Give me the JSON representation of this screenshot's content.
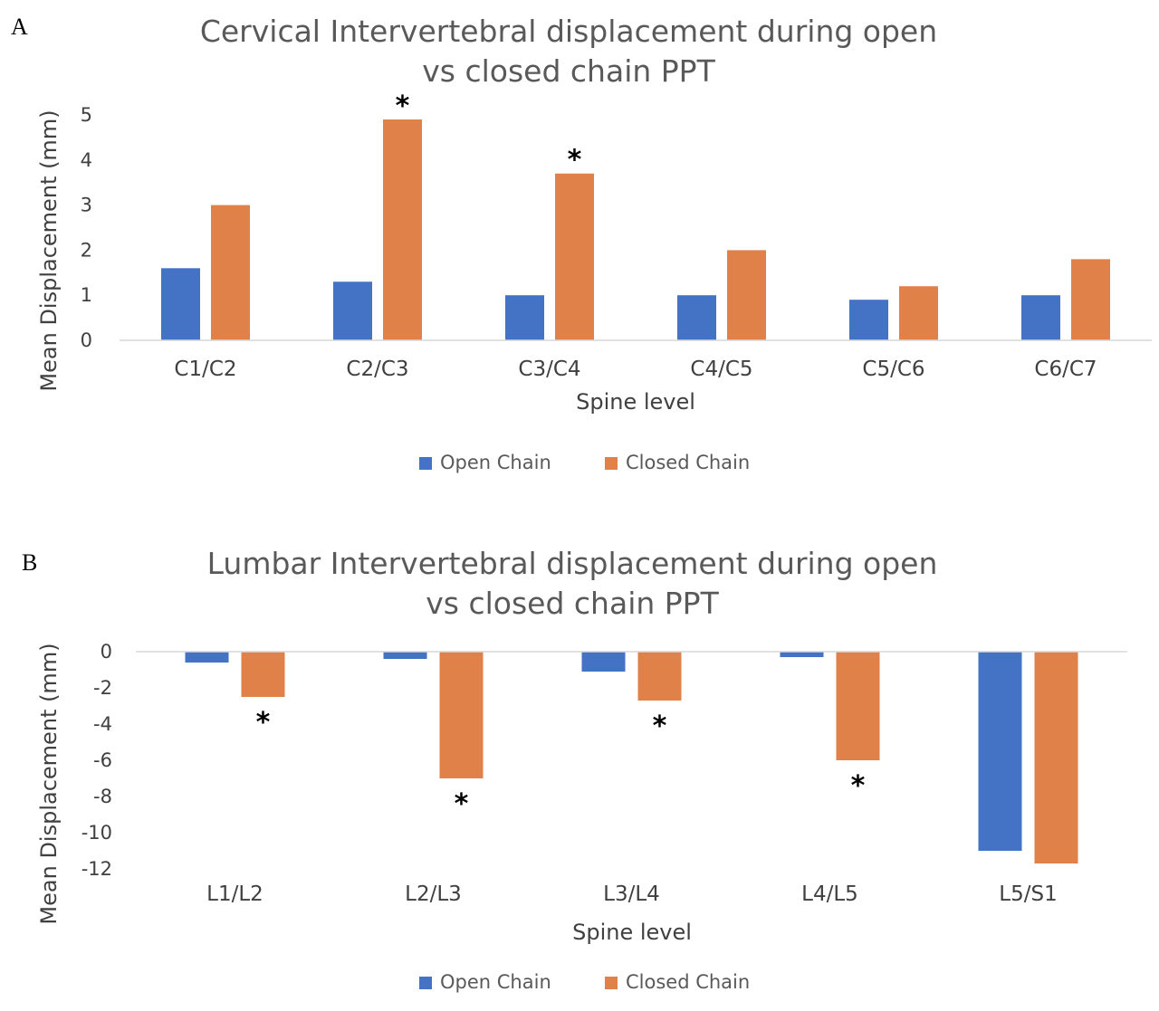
{
  "chart_data": [
    {
      "panel_label": "A",
      "type": "bar",
      "title": "Cervical Intervertebral displacement during open vs closed chain PPT",
      "title_lines": [
        "Cervical Intervertebral displacement during open",
        "vs closed chain PPT"
      ],
      "xlabel": "Spine level",
      "ylabel": "Mean Displacement (mm)",
      "ylim": [
        0,
        5
      ],
      "yticks": [
        0,
        1,
        2,
        3,
        4,
        5
      ],
      "categories": [
        "C1/C2",
        "C2/C3",
        "C3/C4",
        "C4/C5",
        "C5/C6",
        "C6/C7"
      ],
      "series": [
        {
          "name": "Open Chain",
          "color": "#4472C4",
          "values": [
            1.6,
            1.3,
            1.0,
            1.0,
            0.9,
            1.0
          ]
        },
        {
          "name": "Closed Chain",
          "color": "#E0814A",
          "values": [
            3.0,
            4.9,
            3.7,
            2.0,
            1.2,
            1.8
          ]
        }
      ],
      "annotations": [
        {
          "category": "C2/C3",
          "series": "Closed Chain",
          "text": "*"
        },
        {
          "category": "C3/C4",
          "series": "Closed Chain",
          "text": "*"
        }
      ],
      "grid": false,
      "legend": "bottom"
    },
    {
      "panel_label": "B",
      "type": "bar",
      "title": "Lumbar Intervertebral displacement during open vs closed chain PPT",
      "title_lines": [
        "Lumbar Intervertebral displacement during open",
        "vs closed chain PPT"
      ],
      "xlabel": "Spine level",
      "ylabel": "Mean Displacement (mm)",
      "ylim": [
        -12,
        0
      ],
      "yticks": [
        0,
        -2,
        -4,
        -6,
        -8,
        -10,
        -12
      ],
      "categories": [
        "L1/L2",
        "L2/L3",
        "L3/L4",
        "L4/L5",
        "L5/S1"
      ],
      "series": [
        {
          "name": "Open Chain",
          "color": "#4472C4",
          "values": [
            -0.6,
            -0.4,
            -1.1,
            -0.3,
            -11.0
          ]
        },
        {
          "name": "Closed Chain",
          "color": "#E0814A",
          "values": [
            -2.5,
            -7.0,
            -2.7,
            -6.0,
            -11.7
          ]
        }
      ],
      "annotations": [
        {
          "category": "L1/L2",
          "series": "Closed Chain",
          "text": "*"
        },
        {
          "category": "L2/L3",
          "series": "Closed Chain",
          "text": "*"
        },
        {
          "category": "L3/L4",
          "series": "Closed Chain",
          "text": "*"
        },
        {
          "category": "L4/L5",
          "series": "Closed Chain",
          "text": "*"
        }
      ],
      "grid": false,
      "legend": "bottom"
    }
  ]
}
